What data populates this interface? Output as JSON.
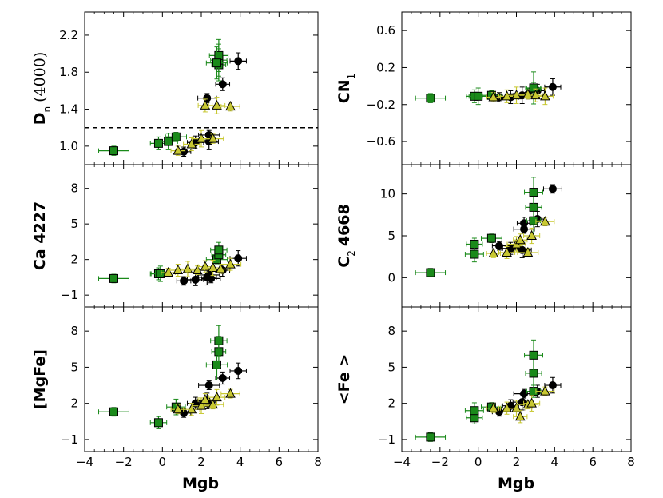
{
  "figure": {
    "type": "scatter-multipanel",
    "x_label": "Mgb",
    "x_ticks": [
      "−4",
      "−2",
      "0",
      "2",
      "4",
      "6",
      "8"
    ]
  },
  "colors": {
    "black": "#000000",
    "green": "#1a8a1a",
    "yellow": "#c8c832",
    "dash": "#000000"
  },
  "chart_data": [
    {
      "type": "scatter",
      "panel": "Dn4000",
      "ylabel": "D",
      "ylabel_sub": "n",
      "ylabel_extra": "(4000)",
      "xlim": [
        -4,
        8
      ],
      "ylim": [
        0.8,
        2.45
      ],
      "yticks": [
        1.0,
        1.4,
        1.8,
        2.2
      ],
      "ytick_labels": [
        "1.0",
        "1.4",
        "1.8",
        "2.2"
      ],
      "hline": 1.2,
      "series": [
        {
          "name": "black",
          "marker": "circle",
          "x": [
            1.1,
            1.7,
            2.4,
            2.4,
            3.1,
            3.9,
            2.3
          ],
          "y": [
            0.94,
            1.04,
            1.05,
            1.12,
            1.67,
            1.92,
            1.52
          ]
        },
        {
          "name": "green",
          "marker": "square",
          "x": [
            -2.5,
            -0.2,
            0.3,
            0.7,
            2.9,
            2.9,
            2.9,
            2.8
          ],
          "y": [
            0.95,
            1.03,
            1.05,
            1.1,
            1.88,
            1.93,
            1.98,
            1.9
          ]
        },
        {
          "name": "yellow",
          "marker": "triangle",
          "x": [
            0.8,
            1.5,
            2.0,
            2.6,
            2.2,
            2.8,
            3.5
          ],
          "y": [
            0.95,
            1.02,
            1.08,
            1.08,
            1.44,
            1.44,
            1.43
          ]
        }
      ]
    },
    {
      "type": "scatter",
      "panel": "CN1",
      "ylabel": "CN",
      "ylabel_sub": "1",
      "xlim": [
        -4,
        8
      ],
      "ylim": [
        -0.85,
        0.8
      ],
      "yticks": [
        -0.6,
        -0.2,
        0.2,
        0.6
      ],
      "ytick_labels": [
        "−0.6",
        "−0.2",
        "0.2",
        "0.6"
      ],
      "series": [
        {
          "name": "black",
          "marker": "circle",
          "x": [
            1.1,
            1.7,
            2.3,
            2.6,
            3.1,
            3.9
          ],
          "y": [
            -0.12,
            -0.12,
            -0.1,
            -0.09,
            -0.05,
            -0.01
          ]
        },
        {
          "name": "green",
          "marker": "square",
          "x": [
            -2.5,
            -0.2,
            0.0,
            0.7,
            2.9,
            2.9
          ],
          "y": [
            -0.13,
            -0.11,
            -0.11,
            -0.1,
            -0.03,
            -0.02
          ]
        },
        {
          "name": "yellow",
          "marker": "triangle",
          "x": [
            0.8,
            1.5,
            2.0,
            2.6,
            3.0,
            3.5
          ],
          "y": [
            -0.12,
            -0.11,
            -0.1,
            -0.09,
            -0.1,
            -0.11
          ]
        }
      ]
    },
    {
      "type": "scatter",
      "panel": "Ca4227",
      "ylabel": "Ca 4227",
      "xlim": [
        -4,
        8
      ],
      "ylim": [
        -2,
        10
      ],
      "yticks": [
        -1,
        2,
        5,
        8
      ],
      "ytick_labels": [
        "−1",
        "2",
        "5",
        "8"
      ],
      "series": [
        {
          "name": "black",
          "marker": "circle",
          "x": [
            1.1,
            1.7,
            2.3,
            2.4,
            3.1,
            3.9,
            2.5
          ],
          "y": [
            0.2,
            0.3,
            0.5,
            0.7,
            1.1,
            2.1,
            0.4
          ]
        },
        {
          "name": "green",
          "marker": "square",
          "x": [
            -2.5,
            -0.2,
            -0.1,
            2.8,
            2.9,
            2.9
          ],
          "y": [
            0.4,
            0.8,
            0.8,
            2.0,
            2.4,
            2.8
          ]
        },
        {
          "name": "yellow",
          "marker": "triangle",
          "x": [
            0.3,
            0.8,
            1.3,
            1.8,
            2.2,
            2.6,
            3.0,
            3.5
          ],
          "y": [
            0.9,
            1.1,
            1.2,
            1.1,
            1.4,
            1.3,
            1.2,
            1.6
          ]
        }
      ]
    },
    {
      "type": "scatter",
      "panel": "C24668",
      "ylabel": "C",
      "ylabel_sub": "2",
      "ylabel_extra": "4668",
      "xlim": [
        -4,
        8
      ],
      "ylim": [
        -3.5,
        13.5
      ],
      "yticks": [
        0,
        5,
        10
      ],
      "ytick_labels": [
        "0",
        "5",
        "10"
      ],
      "series": [
        {
          "name": "black",
          "marker": "circle",
          "x": [
            1.1,
            1.7,
            2.3,
            2.4,
            2.4,
            3.1,
            3.9
          ],
          "y": [
            3.8,
            3.5,
            3.3,
            5.8,
            6.5,
            7.0,
            10.6
          ]
        },
        {
          "name": "green",
          "marker": "square",
          "x": [
            -2.5,
            -0.2,
            -0.2,
            0.7,
            2.9,
            2.9,
            2.9
          ],
          "y": [
            0.6,
            4.0,
            2.8,
            4.7,
            6.8,
            8.4,
            10.2
          ]
        },
        {
          "name": "yellow",
          "marker": "triangle",
          "x": [
            0.8,
            1.5,
            2.0,
            2.6,
            2.2,
            2.8,
            3.5
          ],
          "y": [
            2.9,
            3.0,
            4.0,
            3.0,
            4.5,
            5.0,
            6.7
          ]
        }
      ]
    },
    {
      "type": "scatter",
      "panel": "MgFe",
      "ylabel": "[MgFe]",
      "xlim": [
        -4,
        8
      ],
      "ylim": [
        -2,
        10
      ],
      "yticks": [
        -1,
        2,
        5,
        8
      ],
      "ytick_labels": [
        "−1",
        "2",
        "5",
        "8"
      ],
      "series": [
        {
          "name": "black",
          "marker": "circle",
          "x": [
            1.1,
            1.7,
            2.3,
            2.4,
            3.1,
            3.9,
            2.3
          ],
          "y": [
            1.2,
            2.0,
            2.2,
            3.5,
            4.1,
            4.7,
            2.1
          ]
        },
        {
          "name": "green",
          "marker": "square",
          "x": [
            -2.5,
            -0.2,
            0.7,
            2.8,
            2.9,
            2.9
          ],
          "y": [
            1.3,
            0.4,
            1.7,
            5.2,
            6.3,
            7.2
          ]
        },
        {
          "name": "yellow",
          "marker": "triangle",
          "x": [
            0.8,
            1.5,
            2.0,
            2.6,
            2.2,
            2.8,
            3.5
          ],
          "y": [
            1.5,
            1.5,
            1.8,
            1.9,
            2.3,
            2.5,
            2.8
          ]
        }
      ]
    },
    {
      "type": "scatter",
      "panel": "Fe",
      "ylabel": "<Fe >",
      "xlim": [
        -4,
        8
      ],
      "ylim": [
        -2,
        10
      ],
      "yticks": [
        -1,
        2,
        5,
        8
      ],
      "ytick_labels": [
        "−1",
        "2",
        "5",
        "8"
      ],
      "series": [
        {
          "name": "black",
          "marker": "circle",
          "x": [
            1.1,
            1.7,
            2.3,
            2.4,
            3.1,
            3.9
          ],
          "y": [
            1.3,
            1.8,
            2.1,
            2.8,
            3.0,
            3.5
          ]
        },
        {
          "name": "green",
          "marker": "square",
          "x": [
            -2.5,
            -0.2,
            -0.2,
            0.7,
            2.9,
            2.9,
            2.9
          ],
          "y": [
            -0.8,
            0.8,
            1.4,
            1.7,
            3.0,
            4.5,
            6.0
          ]
        },
        {
          "name": "yellow",
          "marker": "triangle",
          "x": [
            0.8,
            1.5,
            2.0,
            2.6,
            2.2,
            2.8,
            3.5
          ],
          "y": [
            1.6,
            1.6,
            1.6,
            1.9,
            0.9,
            2.0,
            3.0
          ]
        }
      ]
    }
  ]
}
